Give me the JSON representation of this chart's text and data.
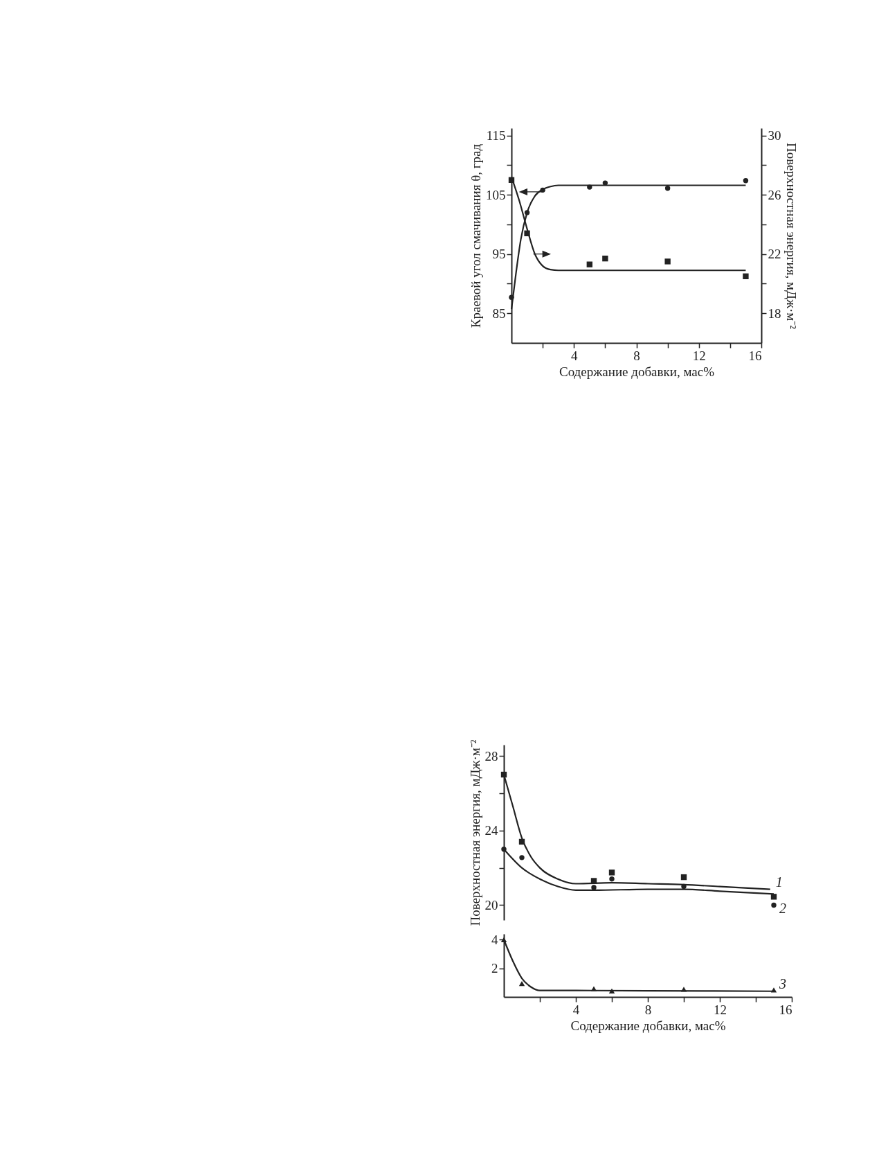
{
  "chart_data": [
    {
      "type": "scatter",
      "xlabel": "Содержание добавки, мас%",
      "ylabel": "Краевой угол смачивания θ, град",
      "y2label": "Поверхностная энергия, мДж·м⁻²",
      "xlim": [
        0,
        16
      ],
      "xticks": [
        {
          "value": 2,
          "label": null
        },
        4,
        {
          "value": 6,
          "label": null
        },
        8,
        {
          "value": 10,
          "label": null
        },
        12,
        {
          "value": 14,
          "label": null
        },
        16
      ],
      "ylim": [
        80,
        116.25
      ],
      "yticks": [
        85,
        {
          "value": 90,
          "label": null
        },
        95,
        {
          "value": 100,
          "label": null
        },
        105,
        {
          "value": 110,
          "label": null
        },
        115
      ],
      "y2lim": [
        16,
        30.5
      ],
      "y2ticks": [
        18,
        {
          "value": 20,
          "label": null
        },
        22,
        {
          "value": 24,
          "label": null
        },
        26,
        {
          "value": 28,
          "label": null
        },
        30
      ],
      "grid": false,
      "series": [
        {
          "type": "line",
          "color": "#222222",
          "x": [
            0,
            0.3,
            0.6,
            1,
            1.5,
            2,
            2.5,
            3,
            4,
            15
          ],
          "values": [
            85.7,
            92,
            97.5,
            102,
            104.8,
            105.9,
            106.4,
            106.6,
            106.6,
            106.6
          ]
        },
        {
          "marker": "circle",
          "color": "#222222",
          "x": [
            0,
            1,
            2,
            5,
            6,
            10,
            15
          ],
          "values": [
            87.7,
            102,
            105.8,
            106.3,
            107,
            106.1,
            107.4
          ]
        },
        {
          "type": "line",
          "axis": "y2",
          "color": "#222222",
          "x": [
            0,
            0.5,
            1,
            1.5,
            2,
            2.5,
            3,
            15
          ],
          "values": [
            27.2,
            25.6,
            23.7,
            22,
            21.2,
            20.95,
            20.9,
            20.9
          ]
        },
        {
          "axis": "y2",
          "marker": "square",
          "color": "#222222",
          "x": [
            0,
            1,
            5,
            6,
            10,
            15
          ],
          "values": [
            27,
            23.4,
            21.3,
            21.7,
            21.5,
            20.5
          ]
        }
      ]
    },
    {
      "type": "scatter",
      "ylabel": "Поверхностная энергия, мДж·м⁻²",
      "xlim": [
        0,
        16
      ],
      "ylim": [
        19.2,
        28.6
      ],
      "yticks": [
        20,
        {
          "value": 22,
          "label": null
        },
        24,
        {
          "value": 26,
          "label": null
        },
        28
      ],
      "tick_labels": "y",
      "grid": false,
      "series": [
        {
          "type": "line",
          "name": "1",
          "color": "#222222",
          "x": [
            0,
            0.5,
            1,
            1.5,
            2,
            3,
            4,
            6,
            8,
            10,
            12,
            14.8
          ],
          "values": [
            27,
            25.3,
            23.6,
            22.6,
            22,
            21.4,
            21.15,
            21.2,
            21.15,
            21.1,
            21,
            20.85
          ]
        },
        {
          "type": "line",
          "name": "2",
          "color": "#222222",
          "x": [
            0,
            1,
            2,
            3,
            4,
            5,
            8,
            10,
            12,
            15
          ],
          "values": [
            23,
            22,
            21.4,
            21,
            20.8,
            20.8,
            20.85,
            20.85,
            20.75,
            20.6
          ]
        },
        {
          "marker": "square",
          "color": "#222222",
          "x": [
            0,
            1,
            5,
            6,
            10,
            15
          ],
          "values": [
            27,
            23.4,
            21.3,
            21.75,
            21.5,
            20.45
          ]
        },
        {
          "marker": "circle",
          "color": "#222222",
          "x": [
            0,
            1,
            5,
            6,
            10,
            15
          ],
          "values": [
            23,
            22.55,
            20.95,
            21.4,
            21,
            20
          ]
        }
      ]
    },
    {
      "type": "scatter",
      "xlabel": "Содержание добавки, мас%",
      "xlim": [
        0,
        16
      ],
      "xticks": [
        {
          "value": 2,
          "label": null
        },
        4,
        {
          "value": 6,
          "label": null
        },
        8,
        {
          "value": 10,
          "label": null
        },
        12,
        {
          "value": 14,
          "label": null
        },
        16
      ],
      "ylim": [
        0,
        4.4
      ],
      "yticks": [
        2,
        4
      ],
      "grid": false,
      "series": [
        {
          "type": "line",
          "name": "3",
          "color": "#222222",
          "x": [
            0,
            0.5,
            1,
            1.5,
            2,
            4,
            8,
            15
          ],
          "values": [
            4,
            2.5,
            1.3,
            0.7,
            0.45,
            0.45,
            0.43,
            0.4
          ]
        },
        {
          "marker": "triangle",
          "color": "#222222",
          "x": [
            0,
            1,
            5,
            6,
            10,
            15
          ],
          "values": [
            4,
            0.94,
            0.57,
            0.42,
            0.54,
            0.49
          ]
        }
      ]
    }
  ]
}
